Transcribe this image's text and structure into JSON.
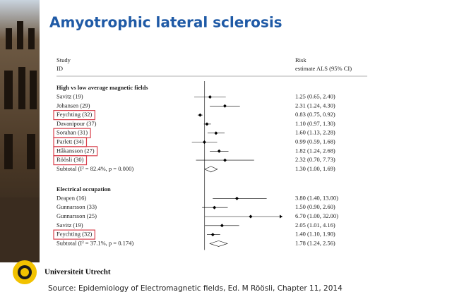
{
  "chart_data": {
    "type": "forest",
    "title": "Amyotrophic lateral sclerosis",
    "study_header": [
      "Study",
      "ID"
    ],
    "estimate_header": [
      "Risk",
      "estimate ALS (95% CI)"
    ],
    "log_scale": true,
    "xlim": [
      0.5,
      25
    ],
    "reference_line": 1,
    "marker_color": "#000000",
    "highlight_color": "#d9434f",
    "groups": [
      {
        "name": "High vs low average magnetic fields",
        "studies": [
          {
            "label": "Savitz (19)",
            "estimate": 1.25,
            "lower": 0.65,
            "upper": 2.4,
            "value_label": "1.25 (0.65, 2.40)",
            "highlighted": false
          },
          {
            "label": "Johansen (29)",
            "estimate": 2.31,
            "lower": 1.24,
            "upper": 4.3,
            "value_label": "2.31 (1.24, 4.30)",
            "highlighted": false
          },
          {
            "label": "Feychting (32)",
            "estimate": 0.83,
            "lower": 0.75,
            "upper": 0.92,
            "value_label": "0.83 (0.75, 0.92)",
            "highlighted": true
          },
          {
            "label": "Davanipour (37)",
            "estimate": 1.1,
            "lower": 0.97,
            "upper": 1.3,
            "value_label": "1.10 (0.97, 1.30)",
            "highlighted": false
          },
          {
            "label": "Sorahan (31)",
            "estimate": 1.6,
            "lower": 1.13,
            "upper": 2.28,
            "value_label": "1.60 (1.13, 2.28)",
            "highlighted": true
          },
          {
            "label": "Parlett (34)",
            "estimate": 0.99,
            "lower": 0.59,
            "upper": 1.68,
            "value_label": "0.99 (0.59, 1.68)",
            "highlighted": true
          },
          {
            "label": "Håkansson (27)",
            "estimate": 1.82,
            "lower": 1.24,
            "upper": 2.68,
            "value_label": "1.82 (1.24, 2.68)",
            "highlighted": true
          },
          {
            "label": "Röösli (30)",
            "estimate": 2.32,
            "lower": 0.7,
            "upper": 7.73,
            "value_label": "2.32 (0.70, 7.73)",
            "highlighted": true
          }
        ],
        "subtotal": {
          "label": "Subtotal (I² = 82.4%, p = 0.000)",
          "estimate": 1.3,
          "lower": 1.0,
          "upper": 1.69,
          "value_label": "1.30 (1.00, 1.69)"
        }
      },
      {
        "name": "Electrical occupation",
        "studies": [
          {
            "label": "Deapen (16)",
            "estimate": 3.8,
            "lower": 1.4,
            "upper": 13.0,
            "value_label": "3.80 (1.40, 13.00)",
            "highlighted": false
          },
          {
            "label": "Gunnarsson (33)",
            "estimate": 1.5,
            "lower": 0.9,
            "upper": 2.6,
            "value_label": "1.50 (0.90, 2.60)",
            "highlighted": false
          },
          {
            "label": "Gunnarsson (25)",
            "estimate": 6.7,
            "lower": 1.0,
            "upper": 32.0,
            "value_label": "6.70 (1.00, 32.00)",
            "highlighted": false
          },
          {
            "label": "Savitz (19)",
            "estimate": 2.05,
            "lower": 1.01,
            "upper": 4.16,
            "value_label": "2.05 (1.01, 4.16)",
            "highlighted": false
          },
          {
            "label": "Feychting (32)",
            "estimate": 1.4,
            "lower": 1.1,
            "upper": 1.9,
            "value_label": "1.40 (1.10, 1.90)",
            "highlighted": true
          }
        ],
        "subtotal": {
          "label": "Subtotal (I² = 37.1%, p = 0.174)",
          "estimate": 1.78,
          "lower": 1.24,
          "upper": 2.56,
          "value_label": "1.78 (1.24, 2.56)"
        }
      }
    ]
  },
  "institution": "Universiteit Utrecht",
  "source": "Source: Epidemiology of Electromagnetic fields, Ed. M Röösli, Chapter 11, 2014"
}
